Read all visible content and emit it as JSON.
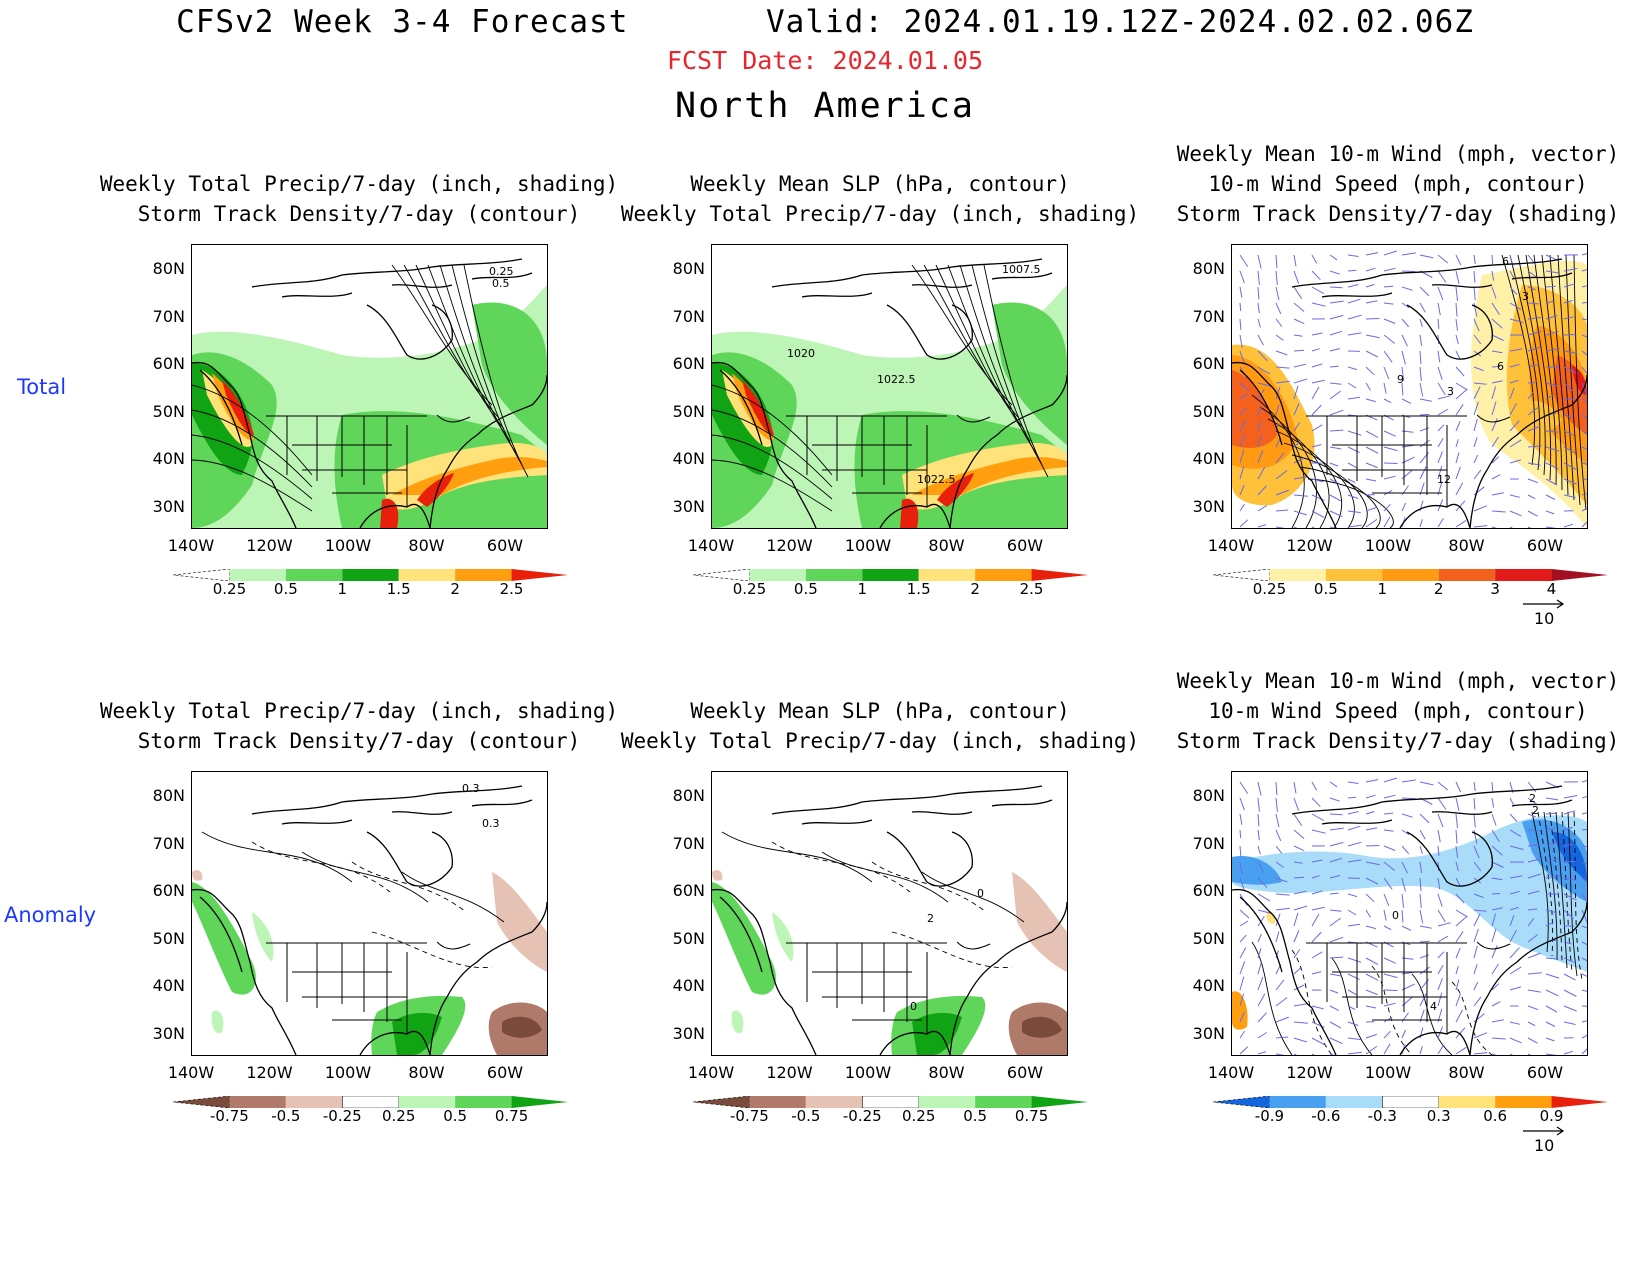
{
  "header": {
    "title": "CFSv2 Week 3-4 Forecast       Valid: 2024.01.19.12Z-2024.02.02.06Z",
    "fcst_date": "FCST Date: 2024.01.05",
    "region": "North America"
  },
  "rows": [
    {
      "label": "Total"
    },
    {
      "label": "Anomaly"
    }
  ],
  "axes": {
    "lat_ticks": [
      "80N",
      "70N",
      "60N",
      "50N",
      "40N",
      "30N"
    ],
    "lon_ticks": [
      "140W",
      "120W",
      "100W",
      "80W",
      "60W"
    ]
  },
  "panels": [
    {
      "title1": "Weekly Total Precip/7-day (inch, shading)",
      "title2": "Storm Track Density/7-day (contour)",
      "title3": "",
      "kind": "precip",
      "contour_labels": [
        "0.25",
        "0.5"
      ]
    },
    {
      "title1": "Weekly Mean SLP (hPa, contour)",
      "title2": "Weekly Total Precip/7-day (inch, shading)",
      "title3": "",
      "kind": "precip",
      "contour_labels": [
        "1007.5",
        "1020",
        "1022.5",
        "1022.5"
      ]
    },
    {
      "title1": "Weekly Mean 10-m Wind (mph, vector)",
      "title2": "10-m Wind Speed (mph, contour)",
      "title3": "Storm Track Density/7-day (shading)",
      "kind": "storm",
      "contour_labels": [
        "9",
        "12",
        "6",
        "3",
        "6",
        "3"
      ]
    },
    {
      "title1": "Weekly Total Precip/7-day (inch, shading)",
      "title2": "Storm Track Density/7-day (contour)",
      "title3": "",
      "kind": "precip_anom",
      "contour_labels": [
        "0.3",
        "0.3"
      ]
    },
    {
      "title1": "Weekly Mean SLP (hPa, contour)",
      "title2": "Weekly Total Precip/7-day (inch, shading)",
      "title3": "",
      "kind": "precip_anom",
      "contour_labels": [
        "0",
        "2",
        "0"
      ]
    },
    {
      "title1": "Weekly Mean 10-m Wind (mph, vector)",
      "title2": "10-m Wind Speed (mph, contour)",
      "title3": "Storm Track Density/7-day (shading)",
      "kind": "storm_anom",
      "contour_labels": [
        "4",
        "0",
        "2",
        "2"
      ]
    }
  ],
  "colorbars": {
    "precip": {
      "labels": [
        "0.25",
        "0.5",
        "1",
        "1.5",
        "2",
        "2.5"
      ],
      "colors": [
        "#ffffff",
        "#bdf5b6",
        "#5fd65a",
        "#10a314",
        "#ffe27a",
        "#ff9f10",
        "#e8200b"
      ]
    },
    "storm": {
      "labels": [
        "0.25",
        "0.5",
        "1",
        "2",
        "3",
        "4"
      ],
      "colors": [
        "#ffffff",
        "#fff0a8",
        "#ffc13a",
        "#ff9a12",
        "#f4611c",
        "#e21a1a",
        "#a30f20"
      ]
    },
    "precip_anom": {
      "labels": [
        "-0.75",
        "-0.5",
        "-0.25",
        "0.25",
        "0.5",
        "0.75"
      ],
      "colors": [
        "#7a4a3a",
        "#b07a6a",
        "#e6c2b5",
        "#ffffff",
        "#bdf5b6",
        "#5fd65a",
        "#10a314"
      ]
    },
    "storm_anom": {
      "labels": [
        "-0.9",
        "-0.6",
        "-0.3",
        "0.3",
        "0.6",
        "0.9"
      ],
      "colors": [
        "#1466e0",
        "#4aa0f0",
        "#a8dcf8",
        "#ffffff",
        "#ffe27a",
        "#ff9f10",
        "#e8200b"
      ]
    }
  },
  "vector_ref": "10",
  "colors": {
    "fcst_date": "#e8262c",
    "row_label": "#1d39ff",
    "wind_vector": "#6a6ae8"
  }
}
